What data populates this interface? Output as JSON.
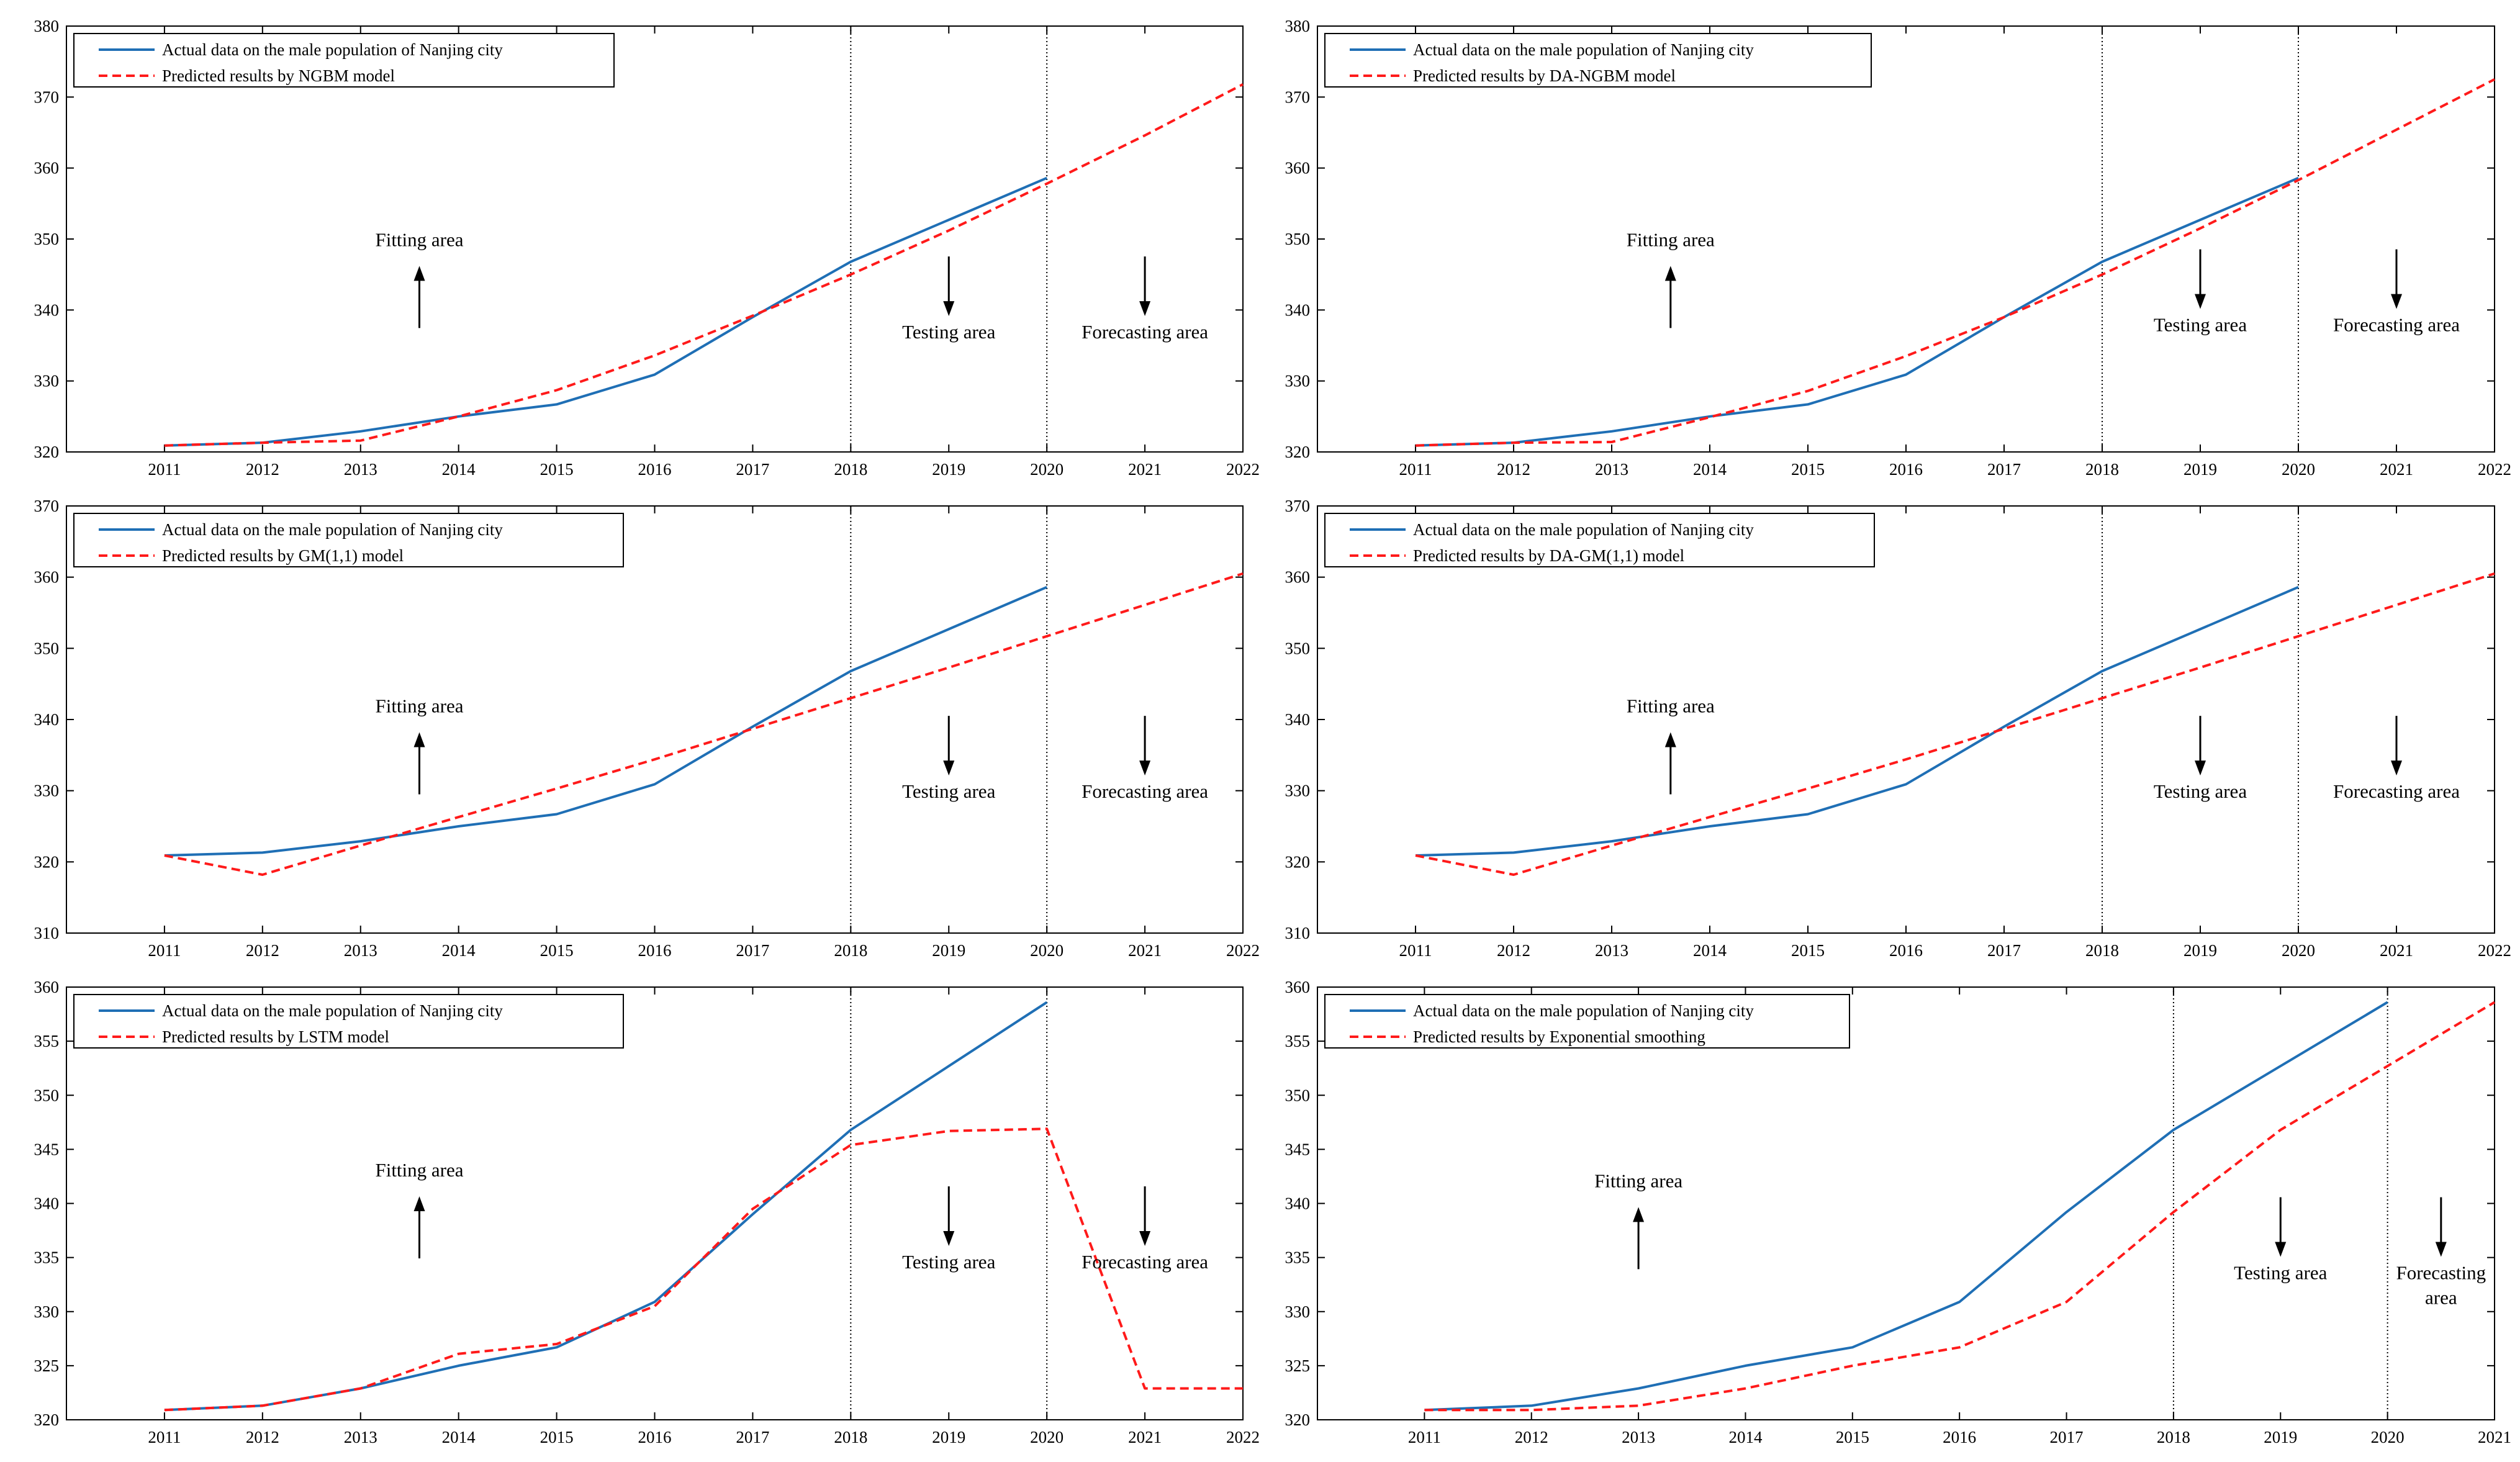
{
  "figure": {
    "colors": {
      "actual": "#1f6fb5",
      "predicted": "#ff1a1a",
      "axis": "#000000",
      "divider": "#000000"
    }
  },
  "chart_data": [
    {
      "type": "line",
      "x": [
        2011,
        2012,
        2013,
        2014,
        2015,
        2016,
        2017,
        2018,
        2019,
        2020,
        2021,
        2022
      ],
      "xlim": [
        2010,
        2022
      ],
      "ylim": [
        320,
        380
      ],
      "yticks": [
        320,
        330,
        340,
        350,
        360,
        370,
        380
      ],
      "dividers": [
        2018,
        2020
      ],
      "series": [
        {
          "name": "Actual data on the male population of Nanjing city",
          "style": "solid",
          "color": "#1f6fb5",
          "x": [
            2011,
            2012,
            2013,
            2014,
            2015,
            2016,
            2017,
            2018,
            2019,
            2020
          ],
          "values": [
            320.9,
            321.3,
            322.9,
            325.0,
            326.7,
            330.9,
            339.0,
            346.8,
            352.7,
            358.6
          ]
        },
        {
          "name": "Predicted results by NGBM model",
          "style": "dashed",
          "color": "#ff1a1a",
          "x": [
            2011,
            2012,
            2013,
            2014,
            2015,
            2016,
            2017,
            2018,
            2019,
            2020,
            2021,
            2022
          ],
          "values": [
            320.9,
            321.3,
            321.6,
            325.0,
            328.7,
            333.6,
            339.2,
            345.0,
            351.2,
            357.8,
            364.6,
            371.8
          ]
        }
      ],
      "annotations": [
        {
          "text": "Fitting area",
          "x": 2013.6,
          "y": 349,
          "arrow": "up"
        },
        {
          "text": "Testing area",
          "x": 2019,
          "y": 336,
          "arrow": "down"
        },
        {
          "text": "Forecasting area",
          "x": 2021,
          "y": 336,
          "arrow": "down"
        }
      ],
      "legend": "top-left"
    },
    {
      "type": "line",
      "x": [
        2011,
        2012,
        2013,
        2014,
        2015,
        2016,
        2017,
        2018,
        2019,
        2020,
        2021,
        2022
      ],
      "xlim": [
        2010,
        2022
      ],
      "ylim": [
        320,
        380
      ],
      "yticks": [
        320,
        330,
        340,
        350,
        360,
        370,
        380
      ],
      "dividers": [
        2018,
        2020
      ],
      "series": [
        {
          "name": "Actual data on the male population of Nanjing city",
          "style": "solid",
          "color": "#1f6fb5",
          "x": [
            2011,
            2012,
            2013,
            2014,
            2015,
            2016,
            2017,
            2018,
            2019,
            2020
          ],
          "values": [
            320.9,
            321.3,
            322.9,
            325.0,
            326.7,
            330.9,
            339.0,
            346.8,
            352.7,
            358.6
          ]
        },
        {
          "name": "Predicted results by DA-NGBM model",
          "style": "dashed",
          "color": "#ff1a1a",
          "x": [
            2011,
            2012,
            2013,
            2014,
            2015,
            2016,
            2017,
            2018,
            2019,
            2020,
            2021,
            2022
          ],
          "values": [
            320.9,
            321.3,
            321.4,
            324.9,
            328.6,
            333.5,
            339.0,
            345.0,
            351.5,
            358.3,
            365.4,
            372.5
          ]
        }
      ],
      "annotations": [
        {
          "text": "Fitting area",
          "x": 2013.6,
          "y": 349,
          "arrow": "up"
        },
        {
          "text": "Testing area",
          "x": 2019,
          "y": 337,
          "arrow": "down"
        },
        {
          "text": "Forecasting area",
          "x": 2021,
          "y": 337,
          "arrow": "down"
        }
      ],
      "legend": "top-left"
    },
    {
      "type": "line",
      "x": [
        2011,
        2012,
        2013,
        2014,
        2015,
        2016,
        2017,
        2018,
        2019,
        2020,
        2021,
        2022
      ],
      "xlim": [
        2010,
        2022
      ],
      "ylim": [
        310,
        370
      ],
      "yticks": [
        310,
        320,
        330,
        340,
        350,
        360,
        370
      ],
      "dividers": [
        2018,
        2020
      ],
      "series": [
        {
          "name": "Actual data on the male population of Nanjing city",
          "style": "solid",
          "color": "#1f6fb5",
          "x": [
            2011,
            2012,
            2013,
            2014,
            2015,
            2016,
            2017,
            2018,
            2019,
            2020
          ],
          "values": [
            320.9,
            321.3,
            322.9,
            325.0,
            326.7,
            330.9,
            339.0,
            346.8,
            352.7,
            358.6
          ]
        },
        {
          "name": "Predicted results by GM(1,1) model",
          "style": "dashed",
          "color": "#ff1a1a",
          "x": [
            2011,
            2012,
            2013,
            2014,
            2015,
            2016,
            2017,
            2018,
            2019,
            2020,
            2021,
            2022
          ],
          "values": [
            320.9,
            318.2,
            322.3,
            326.3,
            330.3,
            334.4,
            338.7,
            343.0,
            347.3,
            351.7,
            356.1,
            360.5
          ]
        }
      ],
      "annotations": [
        {
          "text": "Fitting area",
          "x": 2013.6,
          "y": 341,
          "arrow": "up"
        },
        {
          "text": "Testing area",
          "x": 2019,
          "y": 329,
          "arrow": "down"
        },
        {
          "text": "Forecasting area",
          "x": 2021,
          "y": 329,
          "arrow": "down"
        }
      ],
      "legend": "top-left"
    },
    {
      "type": "line",
      "x": [
        2011,
        2012,
        2013,
        2014,
        2015,
        2016,
        2017,
        2018,
        2019,
        2020,
        2021,
        2022
      ],
      "xlim": [
        2010,
        2022
      ],
      "ylim": [
        310,
        370
      ],
      "yticks": [
        310,
        320,
        330,
        340,
        350,
        360,
        370
      ],
      "dividers": [
        2018,
        2020
      ],
      "series": [
        {
          "name": "Actual data on the male population of Nanjing city",
          "style": "solid",
          "color": "#1f6fb5",
          "x": [
            2011,
            2012,
            2013,
            2014,
            2015,
            2016,
            2017,
            2018,
            2019,
            2020
          ],
          "values": [
            320.9,
            321.3,
            322.9,
            325.0,
            326.7,
            330.9,
            339.0,
            346.8,
            352.7,
            358.6
          ]
        },
        {
          "name": "Predicted results by DA-GM(1,1) model",
          "style": "dashed",
          "color": "#ff1a1a",
          "x": [
            2011,
            2012,
            2013,
            2014,
            2015,
            2016,
            2017,
            2018,
            2019,
            2020,
            2021,
            2022
          ],
          "values": [
            320.9,
            318.2,
            322.3,
            326.3,
            330.3,
            334.4,
            338.7,
            343.0,
            347.3,
            351.7,
            356.1,
            360.5
          ]
        }
      ],
      "annotations": [
        {
          "text": "Fitting area",
          "x": 2013.6,
          "y": 341,
          "arrow": "up"
        },
        {
          "text": "Testing area",
          "x": 2019,
          "y": 329,
          "arrow": "down"
        },
        {
          "text": "Forecasting area",
          "x": 2021,
          "y": 329,
          "arrow": "down"
        }
      ],
      "legend": "top-left"
    },
    {
      "type": "line",
      "x": [
        2011,
        2012,
        2013,
        2014,
        2015,
        2016,
        2017,
        2018,
        2019,
        2020,
        2021,
        2022
      ],
      "xlim": [
        2010,
        2022
      ],
      "ylim": [
        320,
        360
      ],
      "yticks": [
        320,
        325,
        330,
        335,
        340,
        345,
        350,
        355,
        360
      ],
      "dividers": [
        2018,
        2020
      ],
      "series": [
        {
          "name": "Actual data on the male population of Nanjing city",
          "style": "solid",
          "color": "#1f6fb5",
          "x": [
            2011,
            2012,
            2013,
            2014,
            2015,
            2016,
            2017,
            2018,
            2019,
            2020
          ],
          "values": [
            320.9,
            321.3,
            322.9,
            325.0,
            326.7,
            330.9,
            339.0,
            346.8,
            352.7,
            358.6
          ]
        },
        {
          "name": "Predicted results by LSTM model",
          "style": "dashed",
          "color": "#ff1a1a",
          "x": [
            2011,
            2012,
            2013,
            2014,
            2015,
            2016,
            2017,
            2018,
            2019,
            2020,
            2021,
            2022
          ],
          "values": [
            320.9,
            321.3,
            322.9,
            326.1,
            327.0,
            330.5,
            339.5,
            345.4,
            346.7,
            346.9,
            322.9,
            322.9
          ]
        }
      ],
      "annotations": [
        {
          "text": "Fitting area",
          "x": 2013.6,
          "y": 342.5,
          "arrow": "up"
        },
        {
          "text": "Testing area",
          "x": 2019,
          "y": 334,
          "arrow": "down"
        },
        {
          "text": "Forecasting area",
          "x": 2021,
          "y": 334,
          "arrow": "down"
        }
      ],
      "legend": "top-left"
    },
    {
      "type": "line",
      "x": [
        2011,
        2012,
        2013,
        2014,
        2015,
        2016,
        2017,
        2018,
        2019,
        2020,
        2021
      ],
      "xlim": [
        2010,
        2021
      ],
      "ylim": [
        320,
        360
      ],
      "yticks": [
        320,
        325,
        330,
        335,
        340,
        345,
        350,
        355,
        360
      ],
      "dividers": [
        2018,
        2020
      ],
      "series": [
        {
          "name": "Actual data on the male population of Nanjing city",
          "style": "solid",
          "color": "#1f6fb5",
          "x": [
            2011,
            2012,
            2013,
            2014,
            2015,
            2016,
            2017,
            2018,
            2019,
            2020
          ],
          "values": [
            320.9,
            321.3,
            322.9,
            325.0,
            326.7,
            330.9,
            339.2,
            346.8,
            352.7,
            358.6
          ]
        },
        {
          "name": "Predicted results by Exponential smoothing",
          "style": "dashed",
          "color": "#ff1a1a",
          "x": [
            2011,
            2012,
            2013,
            2014,
            2015,
            2016,
            2017,
            2018,
            2019,
            2020,
            2021
          ],
          "values": [
            320.9,
            320.9,
            321.3,
            322.9,
            325.0,
            326.7,
            330.9,
            339.2,
            346.8,
            352.7,
            358.6
          ]
        }
      ],
      "annotations": [
        {
          "text": "Fitting area",
          "x": 2013,
          "y": 341.5,
          "arrow": "up"
        },
        {
          "text": "Testing area",
          "x": 2019,
          "y": 333,
          "arrow": "down"
        },
        {
          "text": "Forecasting",
          "text2": "area",
          "x": 2020.5,
          "y": 333,
          "arrow": "down"
        }
      ],
      "legend": "top-left"
    }
  ]
}
